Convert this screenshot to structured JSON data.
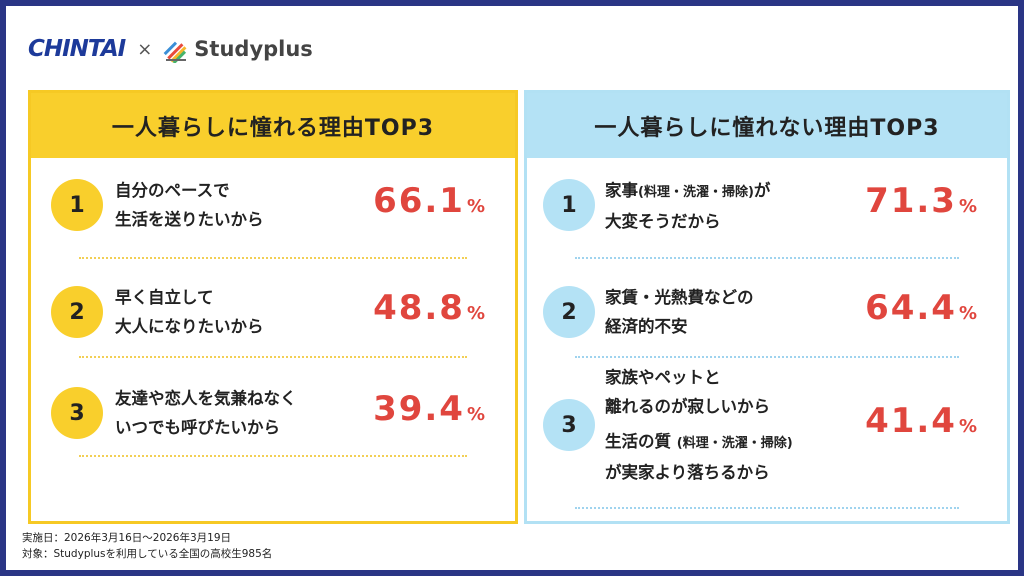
{
  "logos": {
    "brand1": "CHINTAI",
    "separator": "×",
    "brand2": "Studyplus"
  },
  "left_panel": {
    "title": "一人暮らしに憧れる理由TOP3",
    "items": [
      {
        "rank": "1",
        "line1": "自分のペースで",
        "line2": "生活を送りたいから",
        "value": "66.1",
        "unit": "%"
      },
      {
        "rank": "2",
        "line1": "早く自立して",
        "line2": "大人になりたいから",
        "value": "48.8",
        "unit": "%"
      },
      {
        "rank": "3",
        "line1": "友達や恋人を気兼ねなく",
        "line2": "いつでも呼びたいから",
        "value": "39.4",
        "unit": "%"
      }
    ]
  },
  "right_panel": {
    "title": "一人暮らしに憧れない理由TOP3",
    "items": [
      {
        "rank": "1",
        "line1a": "家事",
        "line1b": "(料理・洗濯・掃除)",
        "line1c": "が",
        "line2": "大変そうだから",
        "value": "71.3",
        "unit": "%"
      },
      {
        "rank": "2",
        "line1": "家賃・光熱費などの",
        "line2": "経済的不安",
        "value": "64.4",
        "unit": "%"
      },
      {
        "rank": "3",
        "line1": "家族やペットと",
        "line2": "離れるのが寂しいから",
        "line3a": "生活の質",
        "line3b": "(料理・洗濯・掃除)",
        "line4": "が実家より落ちるから",
        "value": "41.4",
        "unit": "%"
      }
    ]
  },
  "footer": {
    "date": "実施日：2026年3月16日〜2026年3月19日",
    "target": "対象：Studyplusを利用している全国の高校生985名"
  },
  "colors": {
    "yellow": "#f9cf2c",
    "blue": "#b4e2f5",
    "accent_red": "#e0463e",
    "border_navy": "#2a3585"
  }
}
